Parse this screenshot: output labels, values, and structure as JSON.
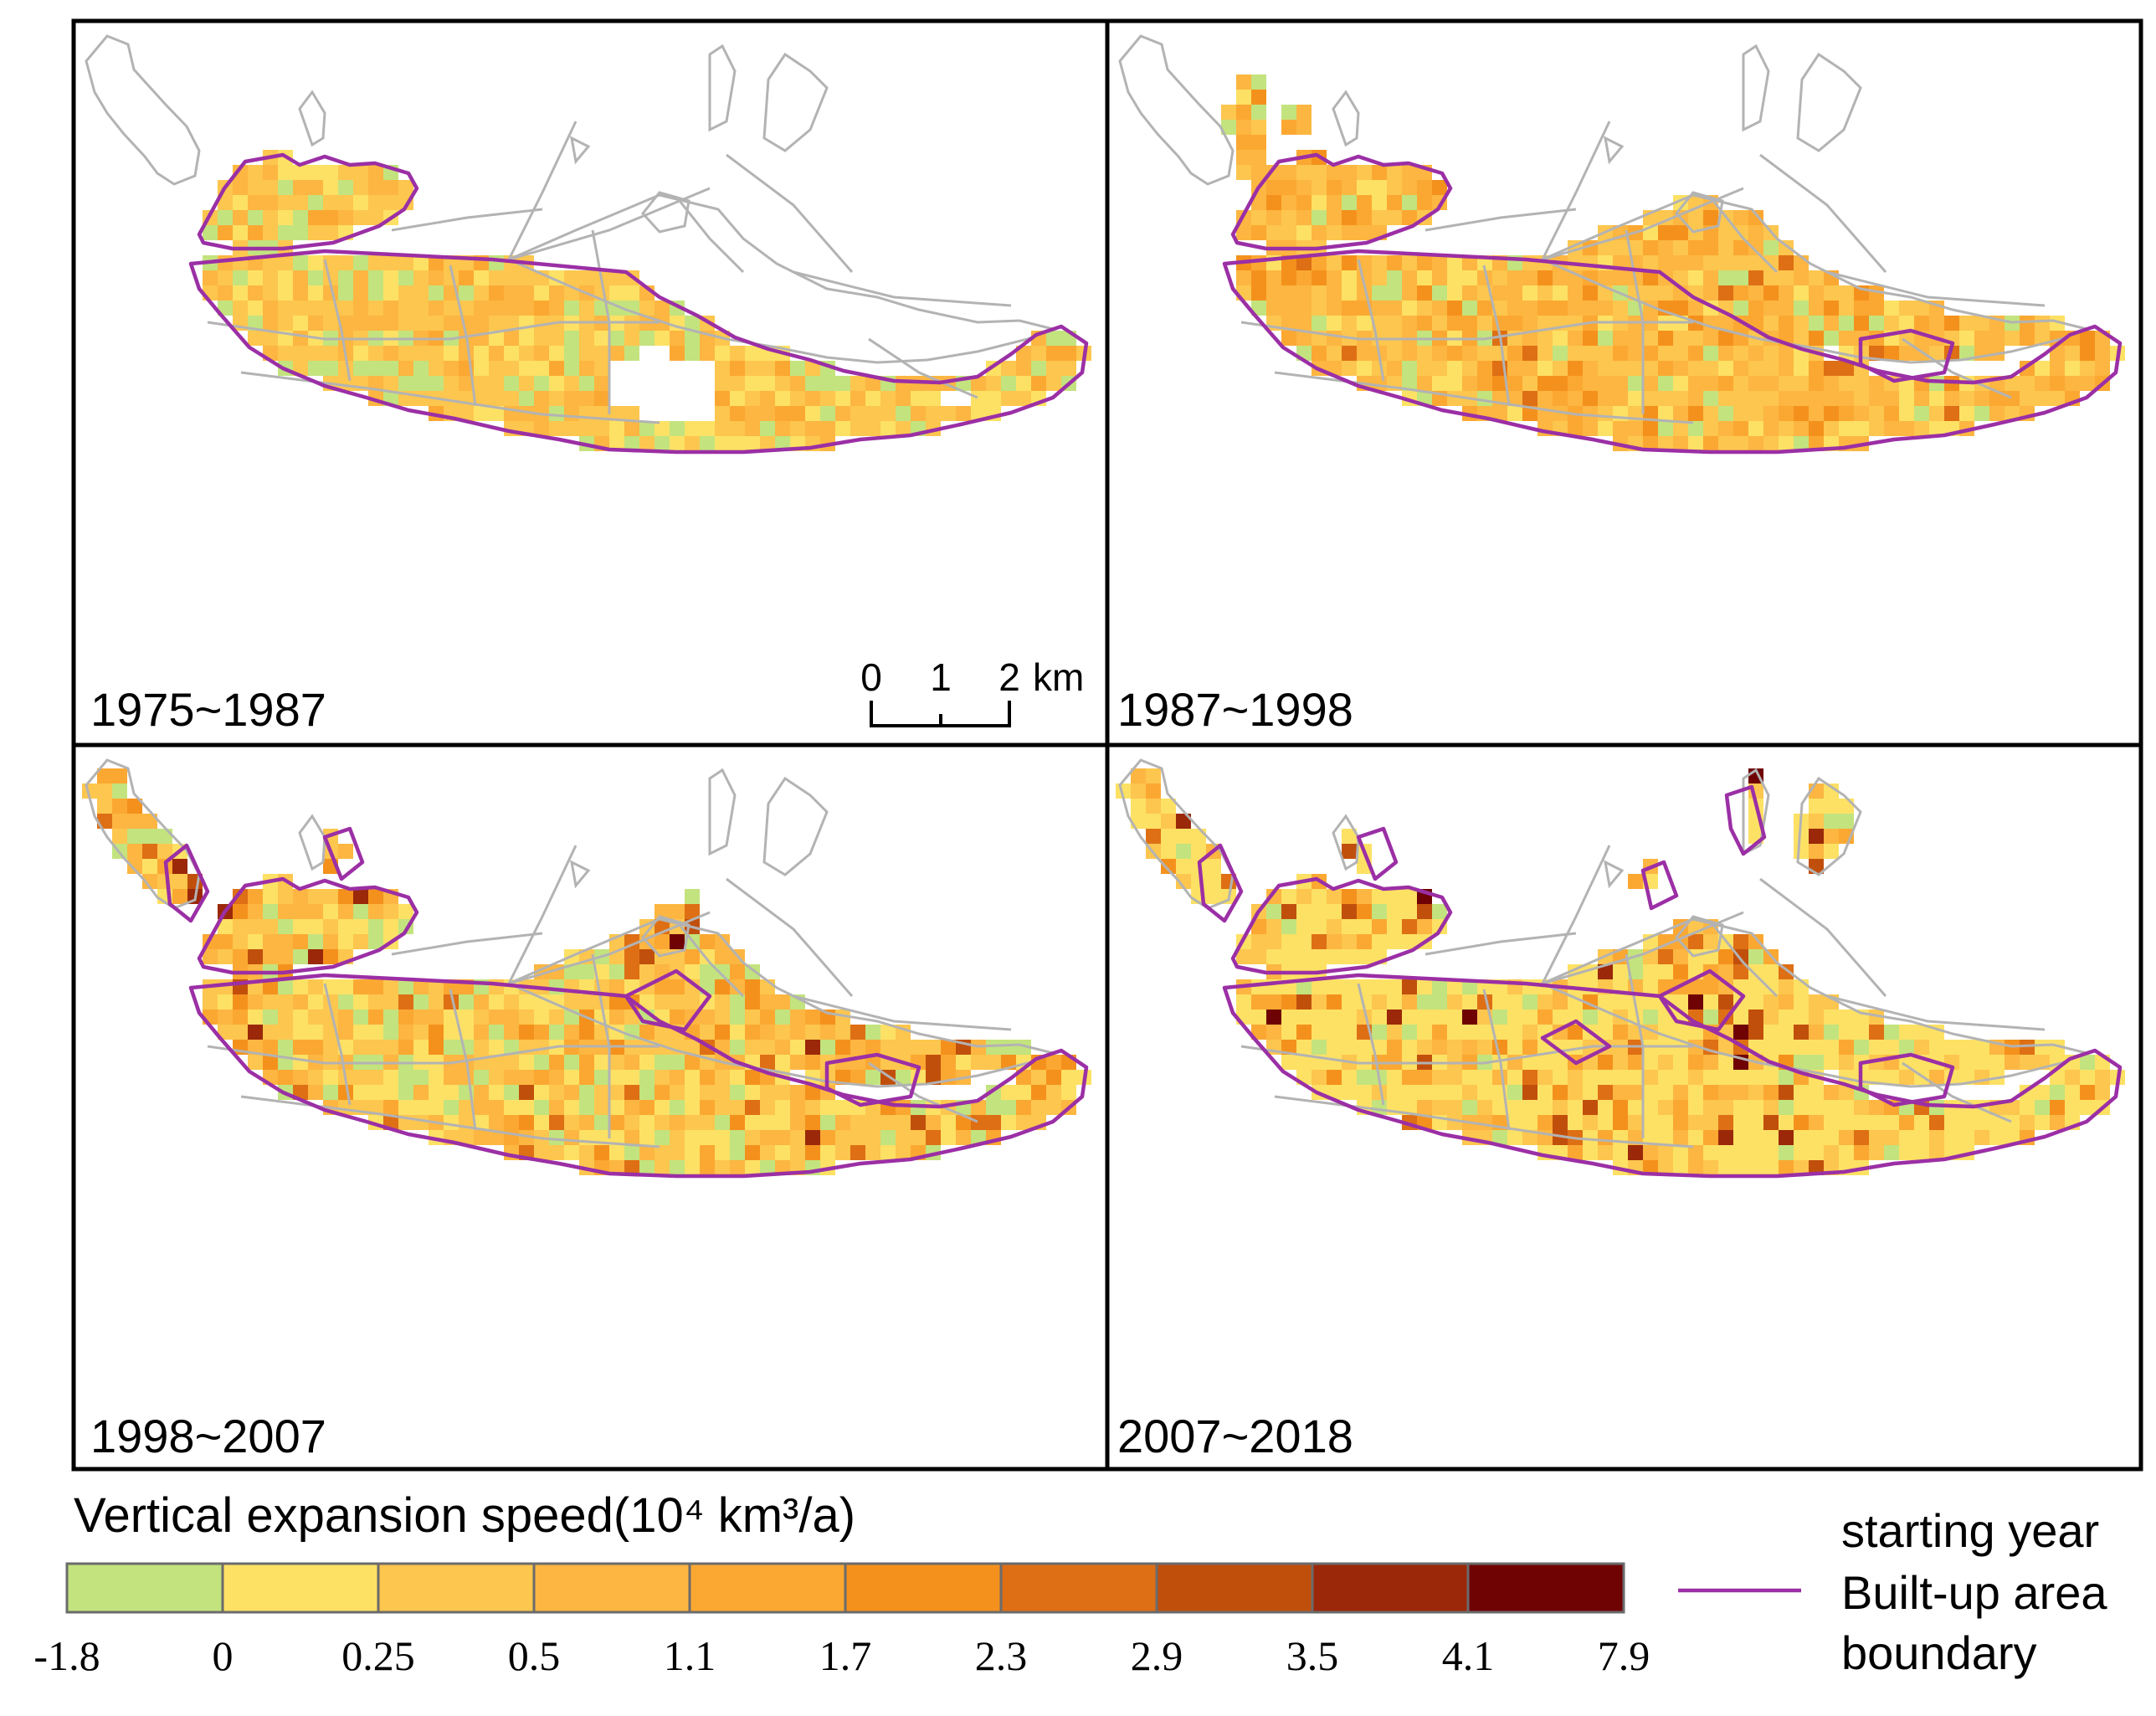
{
  "panels": [
    {
      "label": "1975~1987"
    },
    {
      "label": "1987~1998"
    },
    {
      "label": "1998~2007"
    },
    {
      "label": "2007~2018"
    }
  ],
  "scale_bar": {
    "ticks": [
      "0",
      "1",
      "2"
    ],
    "unit": "km"
  },
  "legend": {
    "title": "Vertical expansion speed(10⁴ km³/a)",
    "breaks": [
      "-1.8",
      "0",
      "0.25",
      "0.5",
      "1.1",
      "1.7",
      "2.3",
      "2.9",
      "3.5",
      "4.1",
      "7.9"
    ],
    "colors": [
      "#c3e37e",
      "#fde164",
      "#fdc64e",
      "#fcb641",
      "#fba832",
      "#f4911c",
      "#de6f14",
      "#c14f0c",
      "#9b2808",
      "#6f0304"
    ],
    "boundary_lines": [
      "starting year",
      "Built-up area",
      "boundary"
    ],
    "boundary_color": "#9b2fa5"
  },
  "map_colors": {
    "road": "#b3b3b3",
    "boundary": "#9b2fa5"
  }
}
